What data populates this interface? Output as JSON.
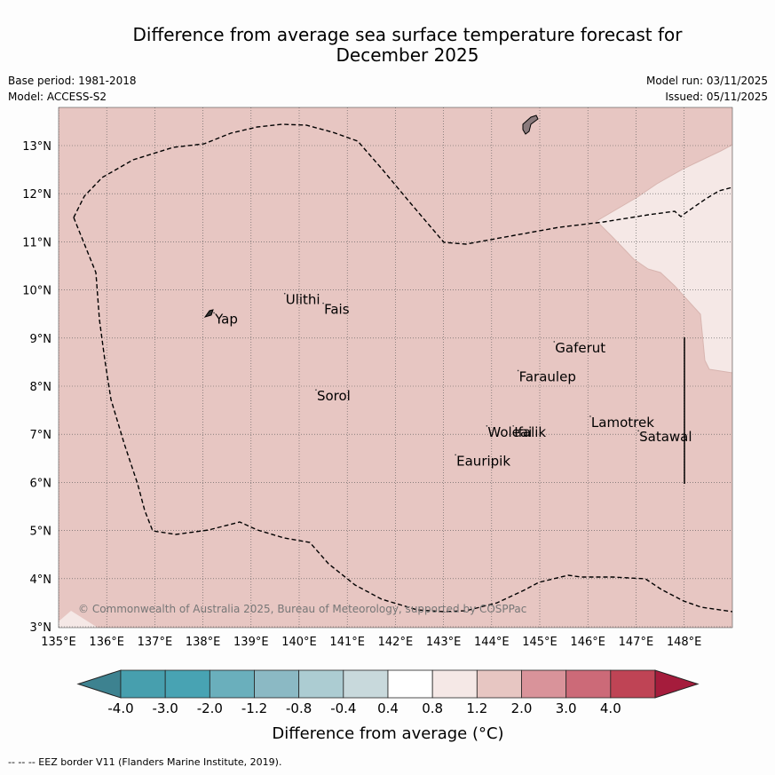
{
  "title_line1": "Difference from average sea surface temperature forecast for",
  "title_line2": "December 2025",
  "meta": {
    "base_period": "Base period: 1981-2018",
    "model": "Model: ACCESS-S2",
    "model_run": "Model run: 03/11/2025",
    "issued": "Issued: 05/11/2025"
  },
  "map": {
    "lon_ticks": [
      "135°E",
      "136°E",
      "137°E",
      "138°E",
      "139°E",
      "140°E",
      "141°E",
      "142°E",
      "143°E",
      "144°E",
      "145°E",
      "146°E",
      "147°E",
      "148°E"
    ],
    "lat_ticks": [
      "13°N",
      "12°N",
      "11°N",
      "10°N",
      "9°N",
      "8°N",
      "7°N",
      "6°N",
      "5°N",
      "4°N",
      "3°N"
    ],
    "background_class_color": "#e7c6c2",
    "light_region_color": "#f5e8e6",
    "places": [
      {
        "name": "Yap",
        "lon": 138.23,
        "lat": 9.45
      },
      {
        "name": "Ulithi",
        "lon": 139.7,
        "lat": 9.85
      },
      {
        "name": "Fais",
        "lon": 140.5,
        "lat": 9.65
      },
      {
        "name": "Gaferut",
        "lon": 145.3,
        "lat": 8.85
      },
      {
        "name": "Faraulep",
        "lon": 144.55,
        "lat": 8.25
      },
      {
        "name": "Sorol",
        "lon": 140.35,
        "lat": 7.85
      },
      {
        "name": "Lamotrek",
        "lon": 146.05,
        "lat": 7.3
      },
      {
        "name": "Woleai",
        "lon": 143.9,
        "lat": 7.1
      },
      {
        "name": "Ifalik",
        "lon": 144.45,
        "lat": 7.1
      },
      {
        "name": "Satawal",
        "lon": 147.05,
        "lat": 7.0
      },
      {
        "name": "Eauripik",
        "lon": 143.25,
        "lat": 6.5
      }
    ],
    "copyright": "© Commonwealth of Australia 2025, Bureau of Meteorology, supported by COSPPac"
  },
  "colorbar": {
    "ticks": [
      "-4.0",
      "-3.0",
      "-2.0",
      "-1.2",
      "-0.8",
      "-0.4",
      "0.4",
      "0.8",
      "1.2",
      "2.0",
      "3.0",
      "4.0"
    ],
    "colors": [
      "#3d8290",
      "#48a3b3",
      "#6aafbc",
      "#8bb9c4",
      "#acccd2",
      "#c8d9dc",
      "#ffffff",
      "#f5e8e6",
      "#e7c6c2",
      "#d9939a",
      "#cc6a78",
      "#bf4455"
    ],
    "over_color": "#a51c3c",
    "label": "Difference from average (°C)"
  },
  "footnote": "--  --  -- EEZ border V11 (Flanders Marine Institute, 2019)."
}
